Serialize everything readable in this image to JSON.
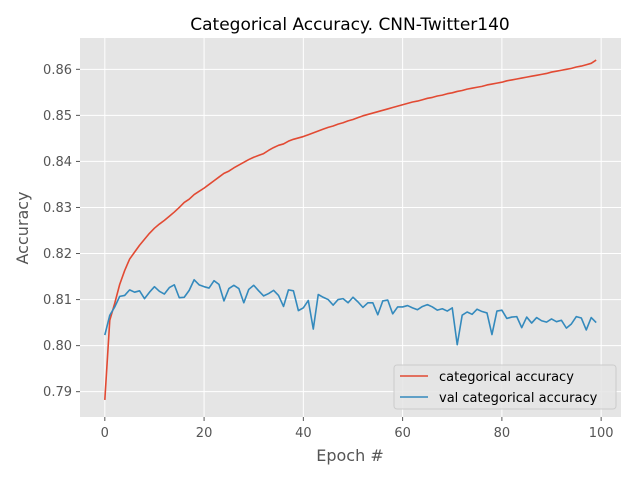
{
  "chart_data": {
    "type": "line",
    "title": "Categorical Accuracy. CNN-Twitter140",
    "xlabel": "Epoch #",
    "ylabel": "Accuracy",
    "xlim": [
      -5,
      104
    ],
    "ylim": [
      0.7845,
      0.8668
    ],
    "grid": true,
    "legend_position": "lower-right",
    "x_ticks": [
      0,
      20,
      40,
      60,
      80,
      100
    ],
    "x_tick_labels": [
      "0",
      "20",
      "40",
      "60",
      "80",
      "100"
    ],
    "y_ticks": [
      0.79,
      0.8,
      0.81,
      0.82,
      0.83,
      0.84,
      0.85,
      0.86
    ],
    "y_tick_labels": [
      "0.79",
      "0.80",
      "0.81",
      "0.82",
      "0.83",
      "0.84",
      "0.85",
      "0.86"
    ],
    "series": [
      {
        "name": "categorical accuracy",
        "color": "#E24A33",
        "values": [
          0.7882,
          0.8055,
          0.8092,
          0.8133,
          0.8163,
          0.8188,
          0.8203,
          0.8218,
          0.8231,
          0.8244,
          0.8255,
          0.8264,
          0.8272,
          0.8281,
          0.829,
          0.83,
          0.8311,
          0.8318,
          0.8328,
          0.8335,
          0.8342,
          0.835,
          0.8358,
          0.8366,
          0.8374,
          0.8379,
          0.8386,
          0.8392,
          0.8398,
          0.8404,
          0.8409,
          0.8413,
          0.8417,
          0.8424,
          0.843,
          0.8435,
          0.8438,
          0.8444,
          0.8448,
          0.8451,
          0.8454,
          0.8458,
          0.8462,
          0.8466,
          0.847,
          0.8474,
          0.8477,
          0.8481,
          0.8484,
          0.8488,
          0.8491,
          0.8495,
          0.8499,
          0.8502,
          0.8505,
          0.8508,
          0.8511,
          0.8514,
          0.8517,
          0.852,
          0.8523,
          0.8526,
          0.8529,
          0.8531,
          0.8534,
          0.8537,
          0.8539,
          0.8542,
          0.8544,
          0.8547,
          0.8549,
          0.8552,
          0.8554,
          0.8557,
          0.8559,
          0.8561,
          0.8563,
          0.8566,
          0.8568,
          0.857,
          0.8572,
          0.8575,
          0.8577,
          0.8579,
          0.8581,
          0.8583,
          0.8585,
          0.8587,
          0.8589,
          0.8591,
          0.8594,
          0.8596,
          0.8598,
          0.86,
          0.8602,
          0.8605,
          0.8607,
          0.861,
          0.8613,
          0.862
        ]
      },
      {
        "name": "val categorical accuracy",
        "color": "#348ABD",
        "values": [
          0.8023,
          0.8066,
          0.8084,
          0.8107,
          0.8109,
          0.8121,
          0.8116,
          0.8119,
          0.8102,
          0.8116,
          0.8128,
          0.8118,
          0.8112,
          0.8126,
          0.8132,
          0.8104,
          0.8105,
          0.812,
          0.8143,
          0.8132,
          0.8128,
          0.8125,
          0.8141,
          0.8133,
          0.8097,
          0.8124,
          0.8131,
          0.8124,
          0.8093,
          0.8122,
          0.8131,
          0.8119,
          0.8108,
          0.8113,
          0.812,
          0.8109,
          0.8085,
          0.8121,
          0.8119,
          0.8076,
          0.8082,
          0.8098,
          0.8036,
          0.8111,
          0.8105,
          0.81,
          0.8088,
          0.81,
          0.8102,
          0.8093,
          0.8105,
          0.8095,
          0.8083,
          0.8093,
          0.8093,
          0.8067,
          0.8097,
          0.8099,
          0.8069,
          0.8084,
          0.8084,
          0.8087,
          0.8082,
          0.8078,
          0.8085,
          0.8089,
          0.8084,
          0.8077,
          0.808,
          0.8075,
          0.8082,
          0.8002,
          0.8066,
          0.8073,
          0.8068,
          0.8079,
          0.8074,
          0.8071,
          0.8024,
          0.8075,
          0.8077,
          0.8059,
          0.8062,
          0.8063,
          0.8039,
          0.8062,
          0.8049,
          0.8061,
          0.8054,
          0.8051,
          0.8058,
          0.8052,
          0.8055,
          0.8038,
          0.8047,
          0.8063,
          0.806,
          0.8034,
          0.8061,
          0.805
        ]
      }
    ]
  }
}
